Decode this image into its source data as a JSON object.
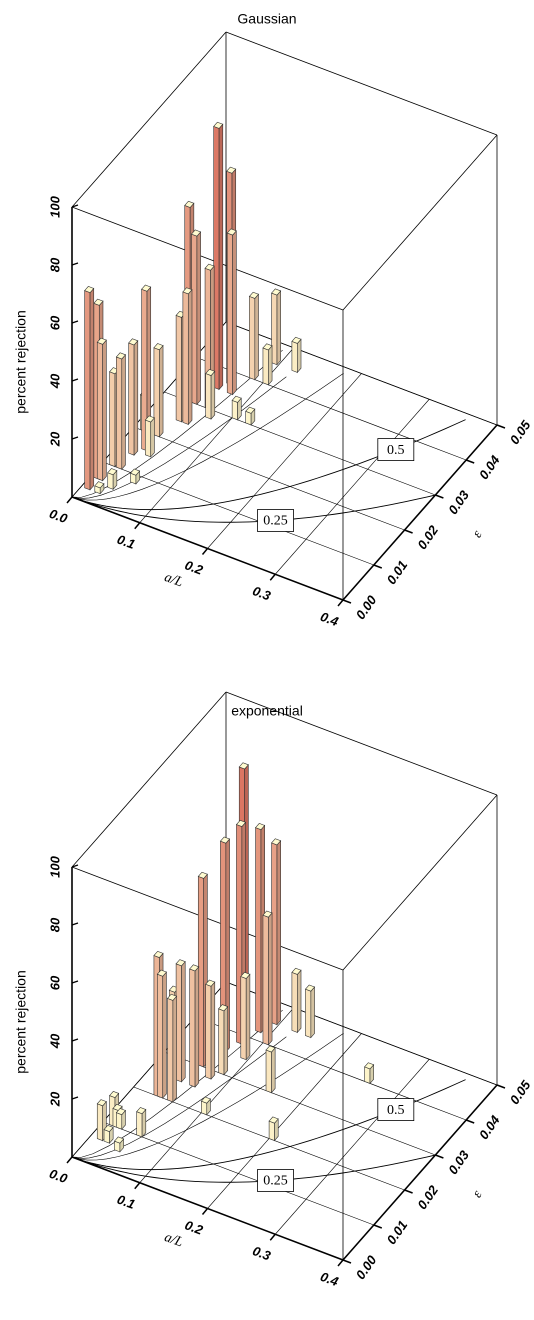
{
  "chart_data": [
    {
      "type": "bar3d",
      "title": "Gaussian",
      "xlabel": "a/L",
      "ylabel": "ε",
      "zlabel": "percent rejection",
      "xlim": [
        0,
        0.4
      ],
      "xticks": [
        {
          "value": 0,
          "label": "0.0"
        },
        0.1,
        0.2,
        0.3,
        0.4
      ],
      "ylim": [
        0,
        0.05
      ],
      "yticks": [
        {
          "value": 0,
          "label": "0.00"
        },
        0.01,
        0.02,
        0.03,
        0.04,
        0.05
      ],
      "zlim": [
        0,
        100
      ],
      "zticks": [
        20,
        40,
        60,
        80,
        100
      ],
      "contour_levels": [
        0.5,
        0.25
      ],
      "colors": [
        "#fffbd0",
        "#d86a5a"
      ],
      "x": [
        0.005,
        0.005,
        0.01,
        0.01,
        0.02,
        0.02,
        0.03,
        0.03,
        0.01,
        0.03,
        0.04,
        0.04,
        0.05,
        0.05,
        0.06,
        0.06,
        0.07,
        0.07,
        0.08,
        0.1,
        0.12,
        0.1,
        0.12,
        0.03,
        0.05,
        0.02,
        0.09,
        0.04
      ],
      "y": [
        0.003,
        0.006,
        0.006,
        0.01,
        0.01,
        0.014,
        0.016,
        0.02,
        0.02,
        0.03,
        0.03,
        0.025,
        0.035,
        0.025,
        0.037,
        0.03,
        0.035,
        0.028,
        0.04,
        0.04,
        0.045,
        0.03,
        0.03,
        0.005,
        0.008,
        0.003,
        0.045,
        0.015
      ],
      "z": [
        68,
        60,
        47,
        32,
        38,
        38,
        55,
        30,
        12,
        67,
        58,
        36,
        90,
        45,
        73,
        48,
        55,
        15,
        28,
        12,
        10,
        6,
        4,
        5,
        3,
        2,
        24,
        12
      ]
    },
    {
      "type": "bar3d",
      "title": "exponential",
      "xlabel": "a/L",
      "ylabel": "ε",
      "zlabel": "percent rejection",
      "xlim": [
        0,
        0.4
      ],
      "xticks": [
        {
          "value": 0,
          "label": "0.0"
        },
        0.1,
        0.2,
        0.3,
        0.4
      ],
      "ylim": [
        0,
        0.05
      ],
      "yticks": [
        {
          "value": 0,
          "label": "0.00"
        },
        0.01,
        0.02,
        0.03,
        0.04,
        0.05
      ],
      "zlim": [
        0,
        100
      ],
      "zticks": [
        20,
        40,
        60,
        80,
        100
      ],
      "contour_levels": [
        0.5,
        0.25
      ],
      "colors": [
        "#fffbd0",
        "#d86a5a"
      ],
      "x": [
        0.01,
        0.01,
        0.015,
        0.02,
        0.02,
        0.03,
        0.035,
        0.04,
        0.03,
        0.05,
        0.06,
        0.065,
        0.07,
        0.08,
        0.09,
        0.05,
        0.06,
        0.07,
        0.08,
        0.09,
        0.1,
        0.12,
        0.14,
        0.15,
        0.2,
        0.25,
        0.05,
        0.04,
        0.1
      ],
      "y": [
        0.006,
        0.01,
        0.01,
        0.01,
        0.006,
        0.02,
        0.02,
        0.025,
        0.025,
        0.03,
        0.035,
        0.04,
        0.038,
        0.042,
        0.045,
        0.02,
        0.025,
        0.028,
        0.03,
        0.035,
        0.04,
        0.045,
        0.045,
        0.03,
        0.02,
        0.04,
        0.01,
        0.005,
        0.02
      ],
      "z": [
        12,
        10,
        6,
        5,
        4,
        48,
        42,
        40,
        30,
        65,
        72,
        92,
        75,
        70,
        62,
        35,
        40,
        32,
        22,
        28,
        44,
        20,
        16,
        14,
        6,
        5,
        8,
        3,
        4
      ]
    }
  ]
}
